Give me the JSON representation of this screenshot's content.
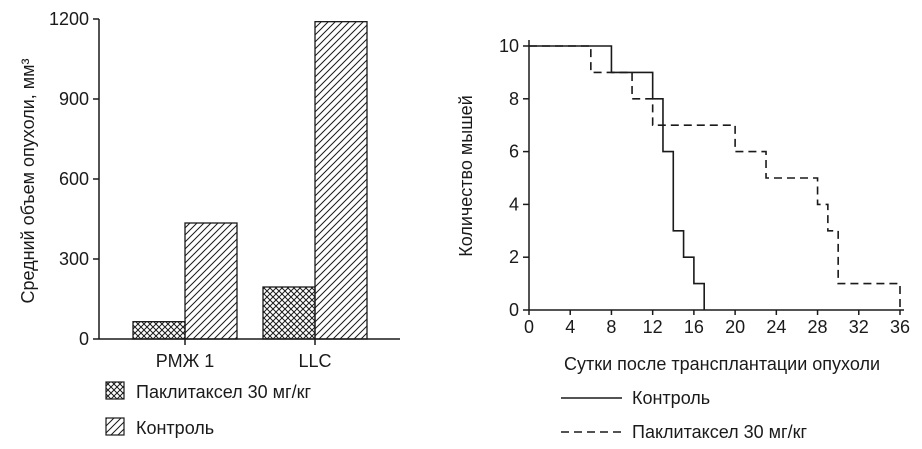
{
  "chart_data": [
    {
      "type": "bar",
      "ylabel": "Средний объем опухоли, мм³",
      "ylim": [
        0,
        1200
      ],
      "yticks": [
        0,
        300,
        600,
        900,
        1200
      ],
      "categories": [
        "РМЖ 1",
        "LLC"
      ],
      "series": [
        {
          "name": "Паклитаксел 30 мг/кг",
          "pattern": "crosshatch",
          "values": [
            65,
            195
          ]
        },
        {
          "name": "Контроль",
          "pattern": "diagonal",
          "values": [
            435,
            1190
          ]
        }
      ],
      "legend_position": "bottom-left"
    },
    {
      "type": "line",
      "step": true,
      "xlabel": "Сутки после трансплантации опухоли",
      "ylabel": "Количество мышей",
      "xlim": [
        0,
        36
      ],
      "ylim": [
        0,
        10
      ],
      "xticks": [
        0,
        4,
        8,
        12,
        16,
        20,
        24,
        28,
        32,
        36
      ],
      "yticks": [
        0,
        2,
        4,
        6,
        8,
        10
      ],
      "series": [
        {
          "name": "Контроль",
          "style": "solid",
          "points": [
            [
              0,
              10
            ],
            [
              8,
              10
            ],
            [
              8,
              9
            ],
            [
              12,
              9
            ],
            [
              12,
              8
            ],
            [
              13,
              8
            ],
            [
              13,
              6
            ],
            [
              14,
              6
            ],
            [
              14,
              3
            ],
            [
              15,
              3
            ],
            [
              15,
              2
            ],
            [
              16,
              2
            ],
            [
              16,
              1
            ],
            [
              17,
              1
            ],
            [
              17,
              0
            ]
          ]
        },
        {
          "name": "Паклитаксел 30 мг/кг",
          "style": "dashed",
          "points": [
            [
              0,
              10
            ],
            [
              6,
              10
            ],
            [
              6,
              9
            ],
            [
              10,
              9
            ],
            [
              10,
              8
            ],
            [
              12,
              8
            ],
            [
              12,
              7
            ],
            [
              20,
              7
            ],
            [
              20,
              6
            ],
            [
              23,
              6
            ],
            [
              23,
              5
            ],
            [
              28,
              5
            ],
            [
              28,
              4
            ],
            [
              29,
              4
            ],
            [
              29,
              3
            ],
            [
              30,
              3
            ],
            [
              30,
              1
            ],
            [
              36,
              1
            ],
            [
              36,
              0
            ]
          ]
        }
      ],
      "legend_position": "bottom-right"
    }
  ]
}
